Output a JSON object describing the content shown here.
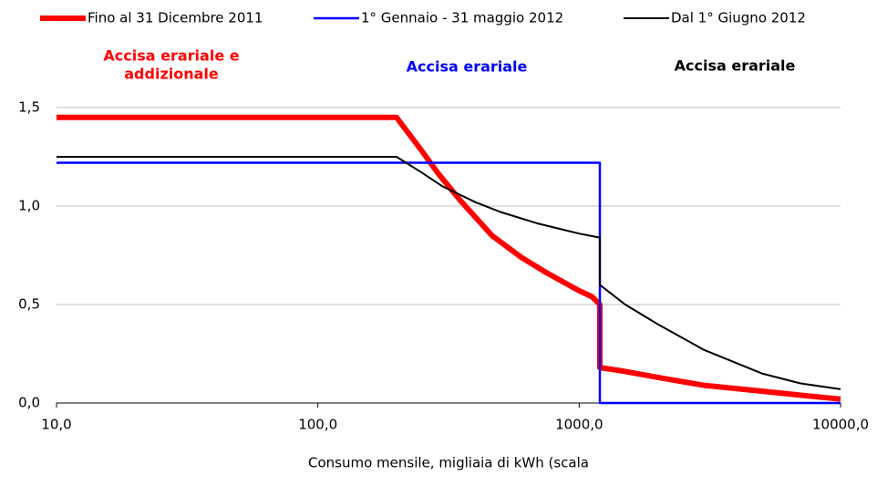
{
  "chart_data": {
    "type": "line",
    "xlabel": "Consumo mensile, migliaia di kWh (scala",
    "xscale": "log",
    "xlim": [
      10,
      10000
    ],
    "ylim": [
      0,
      1.5
    ],
    "xticks": [
      {
        "value": 10,
        "label": "10,0"
      },
      {
        "value": 100,
        "label": "100,0"
      },
      {
        "value": 1000,
        "label": "1000,0"
      },
      {
        "value": 10000,
        "label": "10000,0"
      }
    ],
    "yticks": [
      {
        "value": 0,
        "label": "0,0"
      },
      {
        "value": 0.5,
        "label": "0,5"
      },
      {
        "value": 1,
        "label": "1,0"
      },
      {
        "value": 1.5,
        "label": "1,5"
      }
    ],
    "grid": true,
    "annotations": [
      {
        "text": [
          "Accisa erariale e",
          "addizionale"
        ],
        "color": "#ff0000"
      },
      {
        "text": [
          "Accisa erariale"
        ],
        "color": "#0000ff"
      },
      {
        "text": [
          "Accisa erariale"
        ],
        "color": "#000000"
      }
    ],
    "series": [
      {
        "name": "Fino al 31 Dicembre 2011",
        "color": "#ff0000",
        "x": [
          10,
          200,
          250,
          287,
          350,
          464,
          600,
          753,
          1000,
          1120,
          1200,
          1200,
          1500,
          2000,
          3000,
          5000,
          7000,
          10000
        ],
        "values": [
          1.45,
          1.45,
          1.28,
          1.17,
          1.03,
          0.85,
          0.74,
          0.66,
          0.57,
          0.54,
          0.5,
          0.18,
          0.16,
          0.13,
          0.09,
          0.06,
          0.04,
          0.02
        ]
      },
      {
        "name": "1° Gennaio - 31 maggio 2012",
        "color": "#0000ff",
        "x": [
          10,
          1200,
          1200,
          10000
        ],
        "values": [
          1.22,
          1.22,
          0,
          0
        ]
      },
      {
        "name": "Dal 1° Giugno 2012",
        "color": "#000000",
        "x": [
          10,
          200,
          250,
          300,
          400,
          500,
          700,
          1000,
          1200,
          1200,
          1500,
          2000,
          3000,
          5000,
          7000,
          10000
        ],
        "values": [
          1.25,
          1.25,
          1.17,
          1.1,
          1.02,
          0.97,
          0.91,
          0.86,
          0.84,
          0.6,
          0.5,
          0.4,
          0.27,
          0.15,
          0.1,
          0.07
        ]
      }
    ]
  }
}
